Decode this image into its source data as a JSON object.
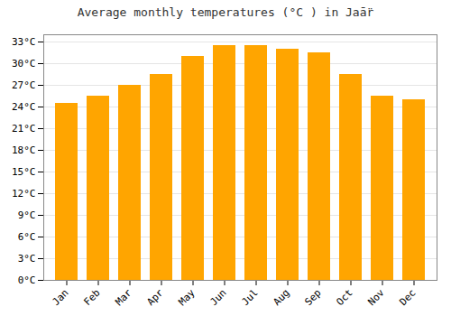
{
  "chart_data": {
    "type": "bar",
    "title": "Average monthly temperatures (°C ) in Jaā̈r",
    "categories": [
      "Jan",
      "Feb",
      "Mar",
      "Apr",
      "May",
      "Jun",
      "Jul",
      "Aug",
      "Sep",
      "Oct",
      "Nov",
      "Dec"
    ],
    "values": [
      24.5,
      25.5,
      27.0,
      28.5,
      31.0,
      32.5,
      32.5,
      32.0,
      31.5,
      28.5,
      25.5,
      25.0
    ],
    "color": "#FFA500",
    "ylim": [
      0,
      34
    ],
    "yticks": [
      {
        "value": 0,
        "label": "0°C"
      },
      {
        "value": 3,
        "label": "3°C"
      },
      {
        "value": 6,
        "label": "6°C"
      },
      {
        "value": 9,
        "label": "9°C"
      },
      {
        "value": 12,
        "label": "12°C"
      },
      {
        "value": 15,
        "label": "15°C"
      },
      {
        "value": 18,
        "label": "18°C"
      },
      {
        "value": 21,
        "label": "21°C"
      },
      {
        "value": 24,
        "label": "24°C"
      },
      {
        "value": 27,
        "label": "27°C"
      },
      {
        "value": 30,
        "label": "30°C"
      },
      {
        "value": 33,
        "label": "33°C"
      }
    ],
    "grid": true
  }
}
